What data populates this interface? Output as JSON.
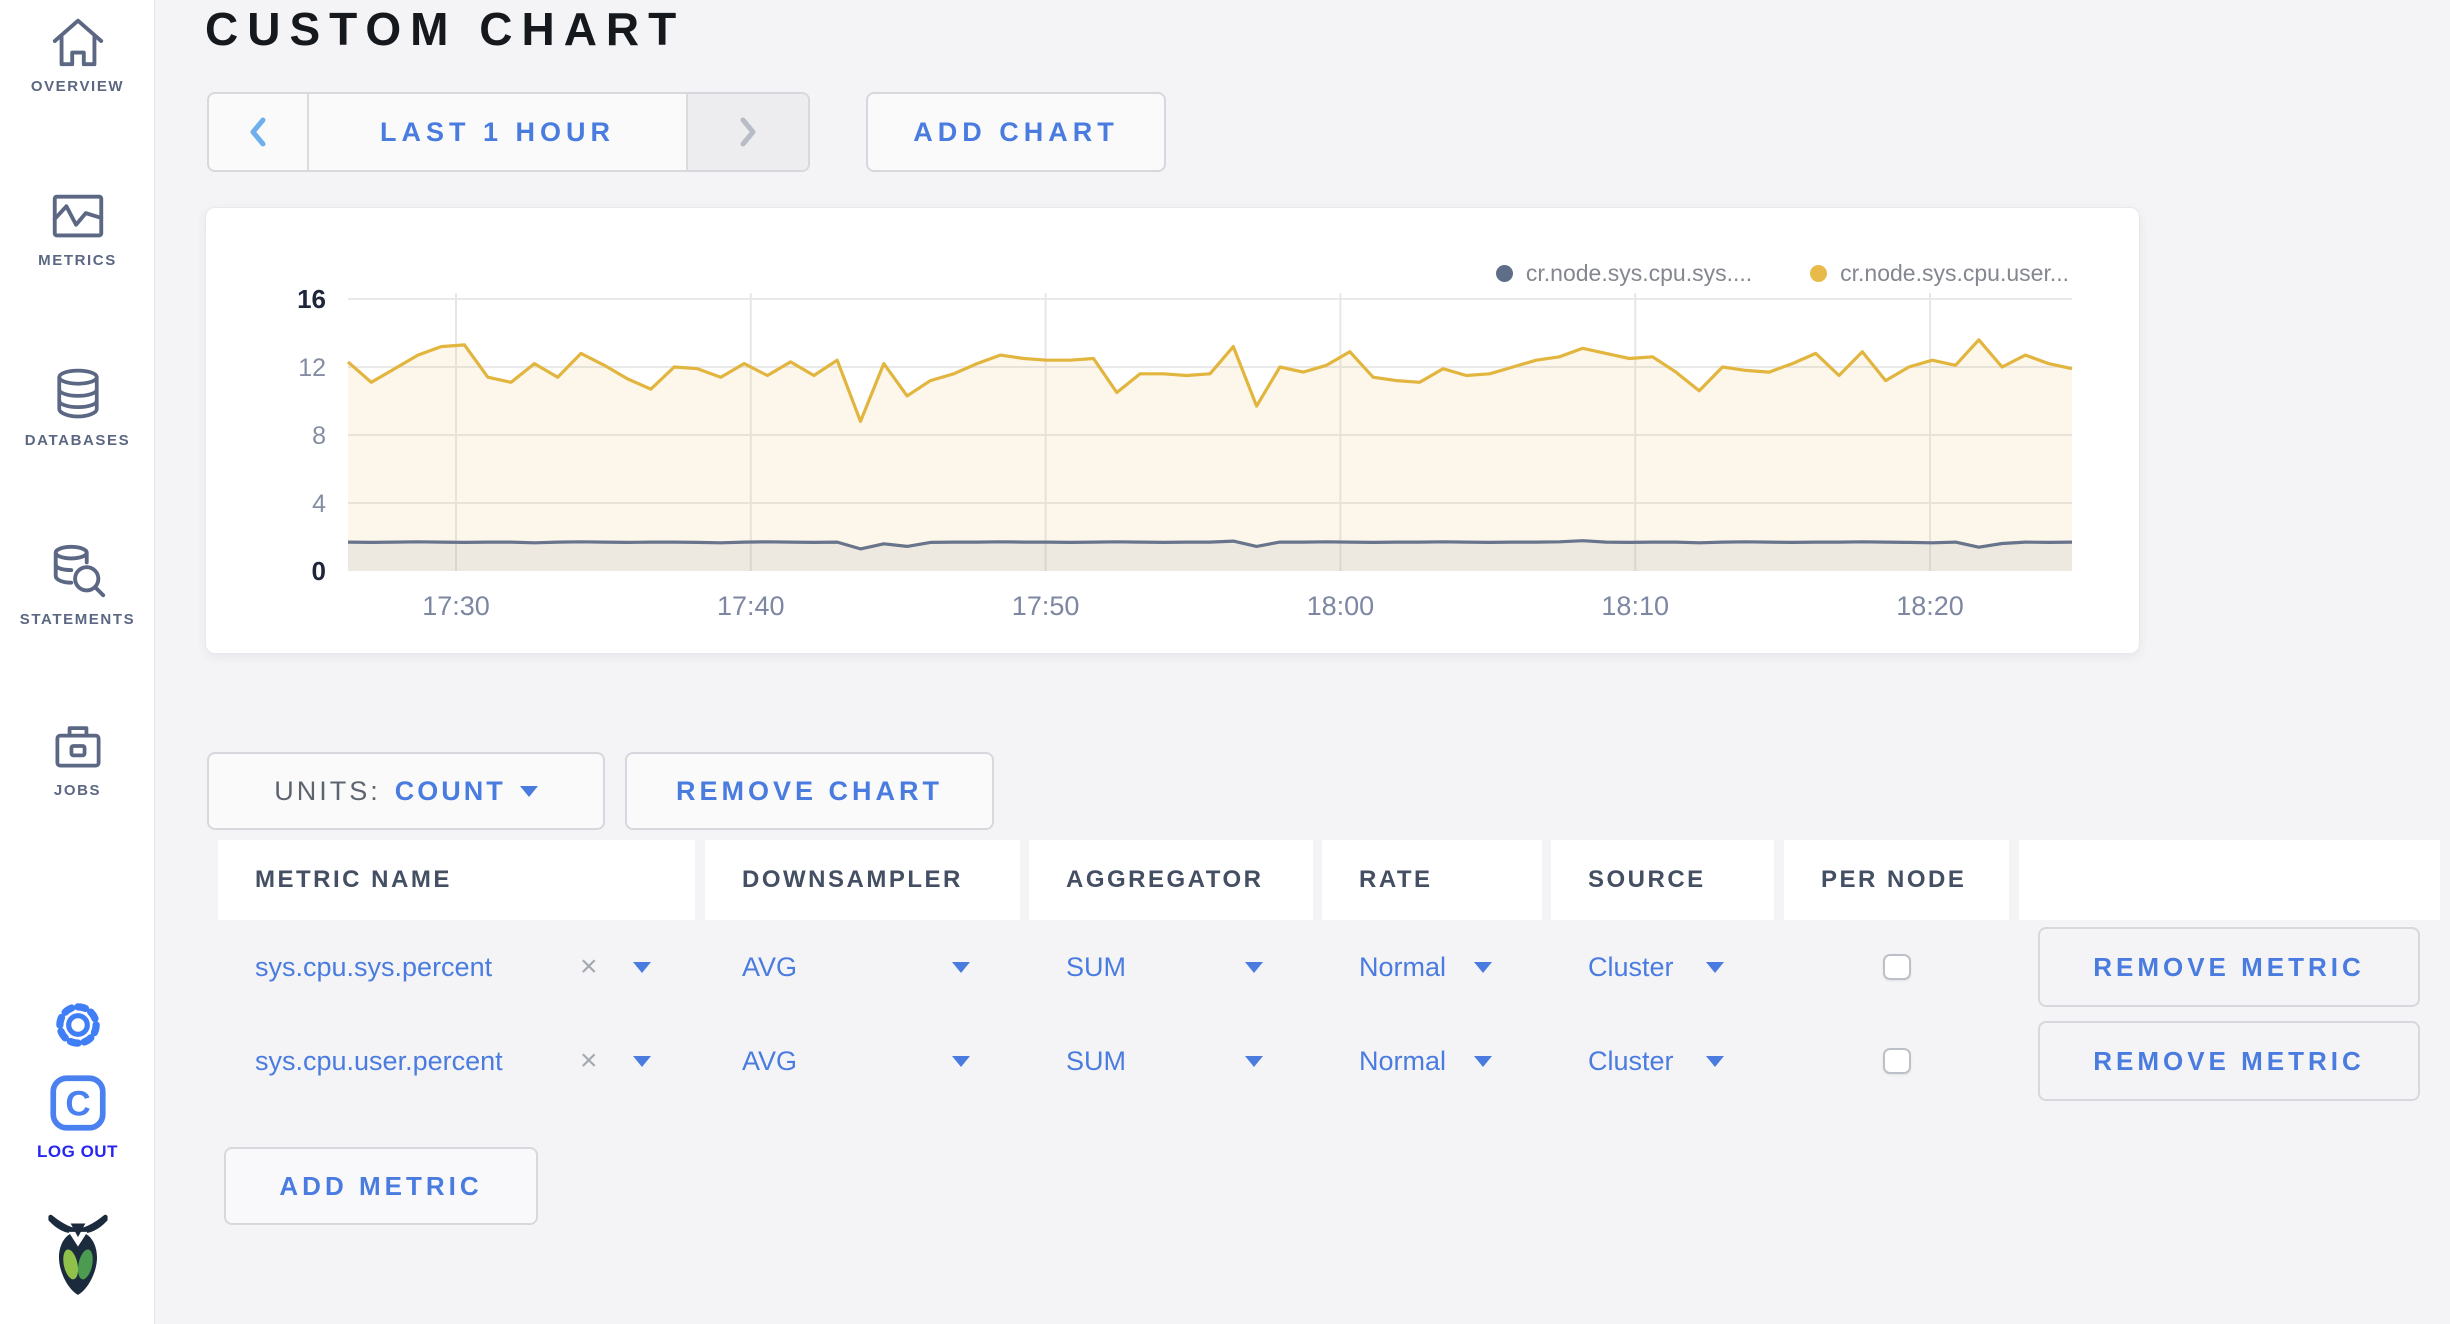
{
  "page": {
    "title": "CUSTOM CHART"
  },
  "colors": {
    "accent_blue": "#4a7ce0",
    "logout_blue": "#2626f0",
    "gear_blue": "#3f7ef5",
    "series_sys": "#68748c",
    "series_user": "#e2b53e",
    "page_bg": "#f4f4f6",
    "sidebar_slate": "#5b6783"
  },
  "icons": {
    "sidebar": [
      "home-icon",
      "line-chart-icon",
      "database-icon",
      "database-search-icon",
      "briefcase-icon"
    ],
    "settings": "gear-icon",
    "logout": "c-logo-icon",
    "brand": "cockroach-bug-icon",
    "time_prev": "chevron-left-icon",
    "time_next": "chevron-right-icon",
    "dropdown": "caret-down-icon",
    "clear": "x-icon"
  },
  "sidebar": {
    "items": [
      {
        "label": "OVERVIEW"
      },
      {
        "label": "METRICS"
      },
      {
        "label": "DATABASES"
      },
      {
        "label": "STATEMENTS"
      },
      {
        "label": "JOBS"
      }
    ],
    "logout_label": "LOG OUT",
    "logo_letter": "C"
  },
  "toolbar": {
    "time_range": "LAST 1 HOUR",
    "add_chart": "ADD CHART"
  },
  "chart_card": {
    "legend": [
      {
        "label": "cr.node.sys.cpu.sys....",
        "color": "#5f6e88"
      },
      {
        "label": "cr.node.sys.cpu.user...",
        "color": "#e7ba4a"
      }
    ]
  },
  "chart_data": {
    "type": "area",
    "title": "",
    "xlabel": "",
    "ylabel": "",
    "x_range": [
      "17:26",
      "18:25"
    ],
    "x_ticks": [
      "17:30",
      "17:40",
      "17:50",
      "18:00",
      "18:10",
      "18:20"
    ],
    "y_ticks": [
      0,
      4,
      8,
      12,
      16
    ],
    "ylim": [
      0,
      16
    ],
    "grid": true,
    "legend_position": "top-right",
    "series": [
      {
        "name": "cr.node.sys.cpu.user...",
        "color": "#e2b53e",
        "fill": "rgba(233,195,90,0.13)",
        "values": [
          12.3,
          11.1,
          11.9,
          12.7,
          13.2,
          13.3,
          11.4,
          11.1,
          12.2,
          11.4,
          12.8,
          12.1,
          11.3,
          10.7,
          12.0,
          11.9,
          11.4,
          12.2,
          11.5,
          12.3,
          11.5,
          12.4,
          8.8,
          12.2,
          10.3,
          11.2,
          11.6,
          12.2,
          12.7,
          12.5,
          12.4,
          12.4,
          12.5,
          10.5,
          11.6,
          11.6,
          11.5,
          11.6,
          13.2,
          9.7,
          12.0,
          11.7,
          12.1,
          12.9,
          11.4,
          11.2,
          11.1,
          11.9,
          11.5,
          11.6,
          12.0,
          12.4,
          12.6,
          13.1,
          12.8,
          12.5,
          12.6,
          11.7,
          10.6,
          12.0,
          11.8,
          11.7,
          12.2,
          12.8,
          11.5,
          12.9,
          11.2,
          12.0,
          12.4,
          12.1,
          13.6,
          12.0,
          12.7,
          12.2,
          11.9
        ]
      },
      {
        "name": "cr.node.sys.cpu.sys....",
        "color": "#68748c",
        "fill": "rgba(104,116,140,0.10)",
        "values": [
          1.7,
          1.68,
          1.7,
          1.72,
          1.7,
          1.68,
          1.7,
          1.7,
          1.66,
          1.7,
          1.72,
          1.7,
          1.68,
          1.7,
          1.7,
          1.68,
          1.66,
          1.7,
          1.72,
          1.7,
          1.68,
          1.7,
          1.3,
          1.6,
          1.45,
          1.68,
          1.7,
          1.7,
          1.72,
          1.7,
          1.7,
          1.68,
          1.7,
          1.72,
          1.7,
          1.68,
          1.7,
          1.7,
          1.76,
          1.45,
          1.7,
          1.7,
          1.72,
          1.7,
          1.68,
          1.7,
          1.7,
          1.72,
          1.7,
          1.68,
          1.7,
          1.7,
          1.72,
          1.78,
          1.7,
          1.68,
          1.7,
          1.7,
          1.66,
          1.7,
          1.72,
          1.7,
          1.68,
          1.7,
          1.7,
          1.72,
          1.7,
          1.68,
          1.66,
          1.7,
          1.4,
          1.62,
          1.7,
          1.68,
          1.7
        ]
      }
    ]
  },
  "units_bar": {
    "units_label": "UNITS:",
    "units_value": "COUNT",
    "remove_chart": "REMOVE CHART"
  },
  "table": {
    "headers": [
      "METRIC NAME",
      "DOWNSAMPLER",
      "AGGREGATOR",
      "RATE",
      "SOURCE",
      "PER NODE",
      ""
    ],
    "rows": [
      {
        "name": "sys.cpu.sys.percent",
        "clear": "×",
        "downsampler": "AVG",
        "aggregator": "SUM",
        "rate": "Normal",
        "source": "Cluster",
        "per_node_checked": false,
        "remove": "REMOVE METRIC"
      },
      {
        "name": "sys.cpu.user.percent",
        "clear": "×",
        "downsampler": "AVG",
        "aggregator": "SUM",
        "rate": "Normal",
        "source": "Cluster",
        "per_node_checked": false,
        "remove": "REMOVE METRIC"
      }
    ],
    "add_metric": "ADD METRIC"
  }
}
